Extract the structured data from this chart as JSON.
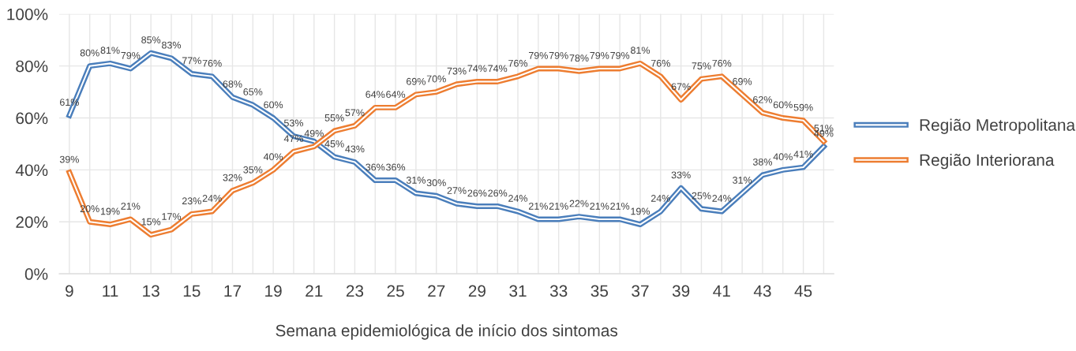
{
  "chart_data": {
    "type": "line",
    "xlabel": "Semana epidemiológica de início dos sintomas",
    "x": [
      9,
      10,
      11,
      12,
      13,
      14,
      15,
      16,
      17,
      18,
      19,
      20,
      21,
      22,
      23,
      24,
      25,
      26,
      27,
      28,
      29,
      30,
      31,
      32,
      33,
      34,
      35,
      36,
      37,
      38,
      39,
      40,
      41,
      42,
      43,
      44,
      45,
      46
    ],
    "series": [
      {
        "name": "Região Metropolitana",
        "color": "#4a7ebb",
        "values": [
          61,
          80,
          81,
          79,
          85,
          83,
          77,
          76,
          68,
          65,
          60,
          53,
          51,
          45,
          43,
          36,
          36,
          31,
          30,
          27,
          26,
          26,
          24,
          21,
          21,
          22,
          21,
          21,
          19,
          24,
          33,
          25,
          24,
          31,
          38,
          40,
          41,
          49
        ],
        "value_labels": [
          "61%",
          "80%",
          "81%",
          "79%",
          "85%",
          "83%",
          "77%",
          "76%",
          "68%",
          "65%",
          "60%",
          "53%",
          null,
          "45%",
          "43%",
          "36%",
          "36%",
          "31%",
          "30%",
          "27%",
          "26%",
          "26%",
          "24%",
          "21%",
          "21%",
          "22%",
          "21%",
          "21%",
          "19%",
          "24%",
          "33%",
          "25%",
          "24%",
          "31%",
          "38%",
          "40%",
          "41%",
          "49%"
        ]
      },
      {
        "name": "Região Interiorana",
        "color": "#ed7d31",
        "values": [
          39,
          20,
          19,
          21,
          15,
          17,
          23,
          24,
          32,
          35,
          40,
          47,
          49,
          55,
          57,
          64,
          64,
          69,
          70,
          73,
          74,
          74,
          76,
          79,
          79,
          78,
          79,
          79,
          81,
          76,
          67,
          75,
          76,
          69,
          62,
          60,
          59,
          51
        ],
        "value_labels": [
          "39%",
          "20%",
          "19%",
          "21%",
          "15%",
          "17%",
          "23%",
          "24%",
          "32%",
          "35%",
          "40%",
          "47%",
          "49%",
          "55%",
          "57%",
          "64%",
          "64%",
          "69%",
          "70%",
          "73%",
          "74%",
          "74%",
          "76%",
          "79%",
          "79%",
          "78%",
          "79%",
          "79%",
          "81%",
          "76%",
          "67%",
          "75%",
          "76%",
          "69%",
          "62%",
          "60%",
          "59%",
          "51%"
        ]
      }
    ],
    "xlim": [
      8.5,
      46.5
    ],
    "xticks": [
      9,
      {
        "value": 10,
        "label": null
      },
      11,
      {
        "value": 12,
        "label": null
      },
      13,
      {
        "value": 14,
        "label": null
      },
      15,
      {
        "value": 16,
        "label": null
      },
      17,
      {
        "value": 18,
        "label": null
      },
      19,
      {
        "value": 20,
        "label": null
      },
      21,
      {
        "value": 22,
        "label": null
      },
      23,
      {
        "value": 24,
        "label": null
      },
      25,
      {
        "value": 26,
        "label": null
      },
      27,
      {
        "value": 28,
        "label": null
      },
      29,
      {
        "value": 30,
        "label": null
      },
      31,
      {
        "value": 32,
        "label": null
      },
      33,
      {
        "value": 34,
        "label": null
      },
      35,
      {
        "value": 36,
        "label": null
      },
      37,
      {
        "value": 38,
        "label": null
      },
      39,
      {
        "value": 40,
        "label": null
      },
      41,
      {
        "value": 42,
        "label": null
      },
      43,
      {
        "value": 44,
        "label": null
      },
      45,
      {
        "value": 46,
        "label": null
      }
    ],
    "ylim": [
      0,
      100
    ],
    "yticks": [
      {
        "value": 0,
        "label": "0%"
      },
      {
        "value": 20,
        "label": "20%"
      },
      {
        "value": 40,
        "label": "40%"
      },
      {
        "value": 60,
        "label": "60%"
      },
      {
        "value": 80,
        "label": "80%"
      },
      {
        "value": 100,
        "label": "100%"
      }
    ],
    "grid": true,
    "legend": "right",
    "marker": "none",
    "line_style": "solid"
  }
}
